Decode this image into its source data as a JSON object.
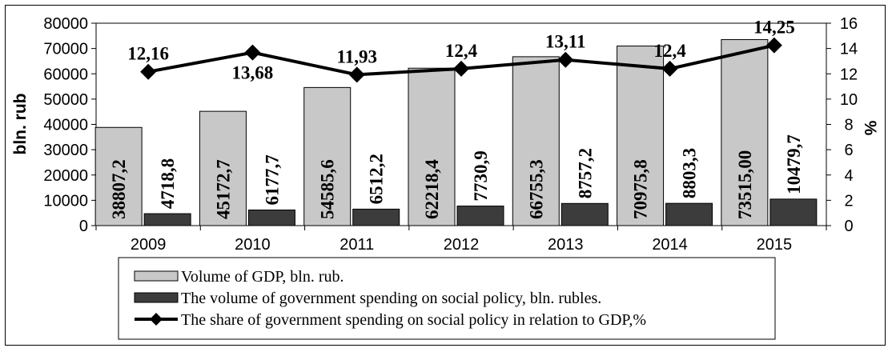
{
  "chart_data": {
    "type": "bar",
    "categories": [
      "2009",
      "2010",
      "2011",
      "2012",
      "2013",
      "2014",
      "2015"
    ],
    "series": [
      {
        "name": "Volume of GDP, bln. rub.",
        "axis": "left",
        "kind": "bar",
        "color": "#c8c8c8",
        "values": [
          38807.2,
          45172.7,
          54585.6,
          62218.4,
          66755.3,
          70975.8,
          73515.0
        ],
        "labels": [
          "38807,2",
          "45172,7",
          "54585,6",
          "62218,4",
          "66755,3",
          "70975,8",
          "73515,00"
        ]
      },
      {
        "name": "The volume of government spending on social policy, bln. rubles.",
        "axis": "left",
        "kind": "bar",
        "color": "#3c3c3c",
        "values": [
          4718.8,
          6177.7,
          6512.2,
          7730.9,
          8757.2,
          8803.3,
          10479.7
        ],
        "labels": [
          "4718,8",
          "6177,7",
          "6512,2",
          "7730,9",
          "8757,2",
          "8803,3",
          "10479,7"
        ]
      },
      {
        "name": "The share of government spending on social policy in relation to GDP,%",
        "axis": "right",
        "kind": "line",
        "color": "#000000",
        "values": [
          12.16,
          13.68,
          11.93,
          12.4,
          13.11,
          12.4,
          14.25
        ],
        "labels": [
          "12,16",
          "13,68",
          "11,93",
          "12,4",
          "13,11",
          "12,4",
          "14,25"
        ]
      }
    ],
    "ylabel": "bln. rub",
    "y2label": "%",
    "ylim": [
      0,
      80000
    ],
    "y2lim": [
      0,
      16
    ],
    "yticks": [
      "0",
      "10000",
      "20000",
      "30000",
      "40000",
      "50000",
      "60000",
      "70000",
      "80000"
    ],
    "y2ticks": [
      "0",
      "2",
      "4",
      "6",
      "8",
      "10",
      "12",
      "14",
      "16"
    ],
    "grid": false,
    "legend_position": "bottom"
  }
}
